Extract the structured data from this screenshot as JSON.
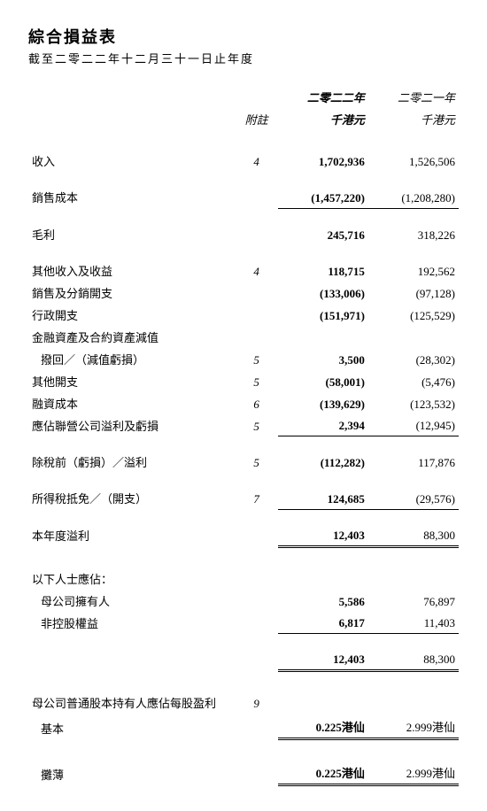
{
  "doc": {
    "title": "綜合損益表",
    "subtitle": "截至二零二二年十二月三十一日止年度",
    "notes_label": "附註",
    "col_year_2022": "二零二二年",
    "col_year_2021": "二零二一年",
    "col_unit": "千港元",
    "rows": {
      "revenue": {
        "label": "收入",
        "note": "4",
        "cur": "1,702,936",
        "prev": "1,526,506"
      },
      "cogs": {
        "label": "銷售成本",
        "note": "",
        "cur": "(1,457,220)",
        "prev": "(1,208,280)"
      },
      "gross": {
        "label": "毛利",
        "note": "",
        "cur": "245,716",
        "prev": "318,226"
      },
      "other_inc": {
        "label": "其他收入及收益",
        "note": "4",
        "cur": "118,715",
        "prev": "192,562"
      },
      "selling": {
        "label": "銷售及分銷開支",
        "note": "",
        "cur": "(133,006)",
        "prev": "(97,128)"
      },
      "admin": {
        "label": "行政開支",
        "note": "",
        "cur": "(151,971)",
        "prev": "(125,529)"
      },
      "impair_h": {
        "label": "金融資產及合約資產減值"
      },
      "impair": {
        "label": "撥回／（減值虧損）",
        "note": "5",
        "cur": "3,500",
        "prev": "(28,302)"
      },
      "other_exp": {
        "label": "其他開支",
        "note": "5",
        "cur": "(58,001)",
        "prev": "(5,476)"
      },
      "finance": {
        "label": "融資成本",
        "note": "6",
        "cur": "(139,629)",
        "prev": "(123,532)"
      },
      "assoc": {
        "label": "應佔聯營公司溢利及虧損",
        "note": "5",
        "cur": "2,394",
        "prev": "(12,945)"
      },
      "pbt": {
        "label": "除稅前（虧損）／溢利",
        "note": "5",
        "cur": "(112,282)",
        "prev": "117,876"
      },
      "tax": {
        "label": "所得稅抵免／（開支）",
        "note": "7",
        "cur": "124,685",
        "prev": "(29,576)"
      },
      "netprofit": {
        "label": "本年度溢利",
        "note": "",
        "cur": "12,403",
        "prev": "88,300"
      },
      "attrib_h": {
        "label": "以下人士應佔："
      },
      "owners": {
        "label": "母公司擁有人",
        "note": "",
        "cur": "5,586",
        "prev": "76,897"
      },
      "nci": {
        "label": "非控股權益",
        "note": "",
        "cur": "6,817",
        "prev": "11,403"
      },
      "attrib_total": {
        "cur": "12,403",
        "prev": "88,300"
      },
      "eps_h": {
        "label": "母公司普通股本持有人應佔每股盈利",
        "note": "9"
      },
      "basic": {
        "label": "基本",
        "cur": "0.225港仙",
        "prev": "2.999港仙"
      },
      "diluted": {
        "label": "攤薄",
        "cur": "0.225港仙",
        "prev": "2.999港仙"
      }
    }
  }
}
